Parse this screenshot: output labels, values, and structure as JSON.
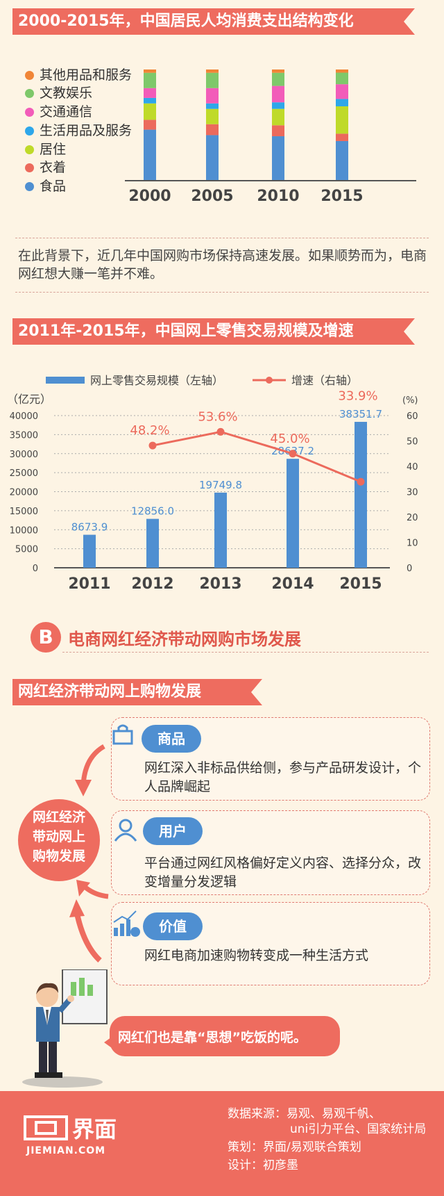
{
  "section1": {
    "title": "2000-2015年，中国居民人均消费支出结构变化",
    "legend": [
      {
        "label": "其他用品和服务",
        "color": "#f08537"
      },
      {
        "label": "文教娱乐",
        "color": "#7ec86a"
      },
      {
        "label": "交通通信",
        "color": "#f25cb9"
      },
      {
        "label": "生活用品及服务",
        "color": "#2ea7ea"
      },
      {
        "label": "居住",
        "color": "#bfda29"
      },
      {
        "label": "衣着",
        "color": "#ec6a5c"
      },
      {
        "label": "食品",
        "color": "#4f8fd1"
      }
    ]
  },
  "paragraph": "在此背景下，近几年中国网购市场保持高速发展。如果顺势而为，电商网红想大赚一笔并不难。",
  "section2": {
    "title": "2011年-2015年，中国网上零售交易规模及增速"
  },
  "section_b": {
    "letter": "B",
    "title": "电商网红经济带动网购市场发展"
  },
  "section3": {
    "title": "网红经济带动网上购物发展",
    "center": "网红经济带动网上购物发展",
    "cards": [
      {
        "tag": "商品",
        "text": "网红深入非标品供给侧，参与产品研发设计，个人品牌崛起",
        "icon": "shopping-bag-icon"
      },
      {
        "tag": "用户",
        "text": "平台通过网红风格偏好定义内容、选择分众，改变增量分发逻辑",
        "icon": "user-icon"
      },
      {
        "tag": "价值",
        "text": "网红电商加速购物转变成一种生活方式",
        "icon": "value-chart-icon"
      }
    ],
    "speech": "网红们也是靠“思想”吃饭的呢。"
  },
  "footer": {
    "logo_text": "界面",
    "logo_sub": "JIEMIAN.COM",
    "source_line1": "数据来源：易观、易观千帆、",
    "source_line2": "uni引力平台、国家统计局",
    "planning": "策划：界面/易观联合策划",
    "design": "设计：初彦墨"
  },
  "chart_data": [
    {
      "type": "bar",
      "stacked": true,
      "normalized": true,
      "categories": [
        "2000",
        "2005",
        "2010",
        "2015"
      ],
      "series": [
        {
          "name": "食品",
          "color": "#4f8fd1",
          "values": [
            46,
            41,
            40,
            37
          ]
        },
        {
          "name": "衣着",
          "color": "#ec6a5c",
          "values": [
            9,
            10,
            10,
            7
          ]
        },
        {
          "name": "居住",
          "color": "#bfda29",
          "values": [
            15,
            14,
            15,
            26
          ]
        },
        {
          "name": "生活用品及服务",
          "color": "#2ea7ea",
          "values": [
            5,
            5,
            6,
            7
          ]
        },
        {
          "name": "交通通信",
          "color": "#f25cb9",
          "values": [
            9,
            14,
            15,
            14
          ]
        },
        {
          "name": "文教娱乐",
          "color": "#7ec86a",
          "values": [
            14,
            14,
            12,
            11
          ]
        },
        {
          "name": "其他用品和服务",
          "color": "#f08537",
          "values": [
            3,
            3,
            3,
            3
          ]
        }
      ]
    },
    {
      "type": "bar+line",
      "categories": [
        "2011",
        "2012",
        "2013",
        "2014",
        "2015"
      ],
      "legend": {
        "bar": "网上零售交易规模（左轴）",
        "line": "增速（右轴）"
      },
      "ylabel_left": "（亿元）",
      "ylabel_right": "(%)",
      "ylim_left": [
        0,
        40000
      ],
      "ylim_right": [
        0,
        60
      ],
      "yticks_left": [
        "40000",
        "35000",
        "30000",
        "25000",
        "20000",
        "15000",
        "10000",
        "5000",
        "0"
      ],
      "yticks_right": [
        "60",
        "50",
        "40",
        "30",
        "20",
        "10",
        "0"
      ],
      "bar_values": [
        8673.9,
        12856.0,
        19749.8,
        28637.2,
        38351.7
      ],
      "bar_labels": [
        "8673.9",
        "12856.0",
        "19749.8",
        "28637.2",
        "38351.7"
      ],
      "line_x": [
        "2012",
        "2013",
        "2014",
        "2015"
      ],
      "line_values": [
        48.2,
        53.6,
        45.0,
        33.9
      ],
      "line_labels": [
        "48.2%",
        "53.6%",
        "45.0%",
        "33.9%"
      ],
      "bar_color": "#4f8fd1",
      "line_color": "#ec6a5c"
    }
  ]
}
